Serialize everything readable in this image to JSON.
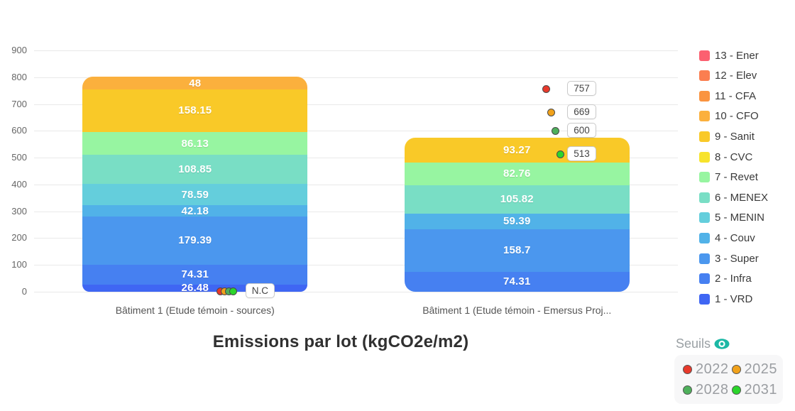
{
  "chart_data": {
    "type": "bar",
    "subtype": "stacked-bar-with-threshold-markers",
    "title": "Emissions par lot (kgCO2e/m2)",
    "y_axis": {
      "min": 0,
      "max": 900,
      "step": 100,
      "ticks": [
        0,
        100,
        200,
        300,
        400,
        500,
        600,
        700,
        800,
        900
      ]
    },
    "grid": "horizontal-on",
    "legend_position": "right",
    "categories": [
      "Bâtiment 1 (Etude témoin - sources)",
      "Bâtiment 1 (Etude témoin - Emersus Proj..."
    ],
    "legend": {
      "items": [
        {
          "label": "13 - Ener",
          "color": "#FB6070"
        },
        {
          "label": "12 - Elev",
          "color": "#FB7E50"
        },
        {
          "label": "11 - CFA",
          "color": "#FA9440"
        },
        {
          "label": "10 - CFO",
          "color": "#FBB03D"
        },
        {
          "label": "9 - Sanit",
          "color": "#F9C928"
        },
        {
          "label": "8 - CVC",
          "color": "#F7E32C"
        },
        {
          "label": "7 - Revet",
          "color": "#97F5A1"
        },
        {
          "label": "6 - MENEX",
          "color": "#79DEC5"
        },
        {
          "label": "5 - MENIN",
          "color": "#64CEDC"
        },
        {
          "label": "4 - Couv",
          "color": "#51B2E8"
        },
        {
          "label": "3 - Super",
          "color": "#4B97EE"
        },
        {
          "label": "2 - Infra",
          "color": "#4680F1"
        },
        {
          "label": "1 - VRD",
          "color": "#3F66F3"
        }
      ]
    },
    "bars": [
      {
        "category": "Bâtiment 1 (Etude témoin - sources)",
        "total": 802.08,
        "segments": [
          {
            "lot": "1 - VRD",
            "value": 26.48,
            "color": "#3F66F3"
          },
          {
            "lot": "2 - Infra",
            "value": 74.31,
            "color": "#4680F1"
          },
          {
            "lot": "3 - Super",
            "value": 179.39,
            "color": "#4B97EE"
          },
          {
            "lot": "4 - Couv",
            "value": 42.18,
            "color": "#51B2E8"
          },
          {
            "lot": "5 - MENIN",
            "value": 78.59,
            "color": "#64CEDC"
          },
          {
            "lot": "6 - MENEX",
            "value": 108.85,
            "color": "#79DEC5"
          },
          {
            "lot": "7 - Revet",
            "value": 86.13,
            "color": "#97F5A1"
          },
          {
            "lot": "9 - Sanit",
            "value": 158.15,
            "color": "#F9C928"
          },
          {
            "lot": "10 - CFO",
            "value": 48,
            "color": "#FBB03D"
          }
        ],
        "threshold_marker": {
          "label": "N.C",
          "dot_colors": [
            "#E8392B",
            "#F1A21B",
            "#4EB05B",
            "#2BD52B"
          ]
        }
      },
      {
        "category": "Bâtiment 1 (Etude témoin - Emersus Proj...",
        "total": 574.25,
        "segments": [
          {
            "lot": "2 - Infra",
            "value": 74.31,
            "color": "#4680F1"
          },
          {
            "lot": "3 - Super",
            "value": 158.7,
            "color": "#4B97EE"
          },
          {
            "lot": "4 - Couv",
            "value": 59.39,
            "color": "#51B2E8"
          },
          {
            "lot": "6 - MENEX",
            "value": 105.82,
            "color": "#79DEC5"
          },
          {
            "lot": "7 - Revet",
            "value": 82.76,
            "color": "#97F5A1"
          },
          {
            "lot": "9 - Sanit",
            "value": 93.27,
            "color": "#F9C928"
          }
        ],
        "threshold_markers": [
          {
            "value": 757,
            "color": "#E8392B"
          },
          {
            "value": 669,
            "color": "#F1A21B"
          },
          {
            "value": 600,
            "color": "#4EB05B"
          },
          {
            "value": 513,
            "color": "#2BD52B"
          }
        ]
      }
    ],
    "seuils": {
      "title": "Seuils",
      "icon_color": "#1CB8A5",
      "items": [
        {
          "year": "2022",
          "color": "#E8392B"
        },
        {
          "year": "2025",
          "color": "#F1A21B"
        },
        {
          "year": "2028",
          "color": "#4EB05B"
        },
        {
          "year": "2031",
          "color": "#2BD52B"
        }
      ]
    }
  }
}
